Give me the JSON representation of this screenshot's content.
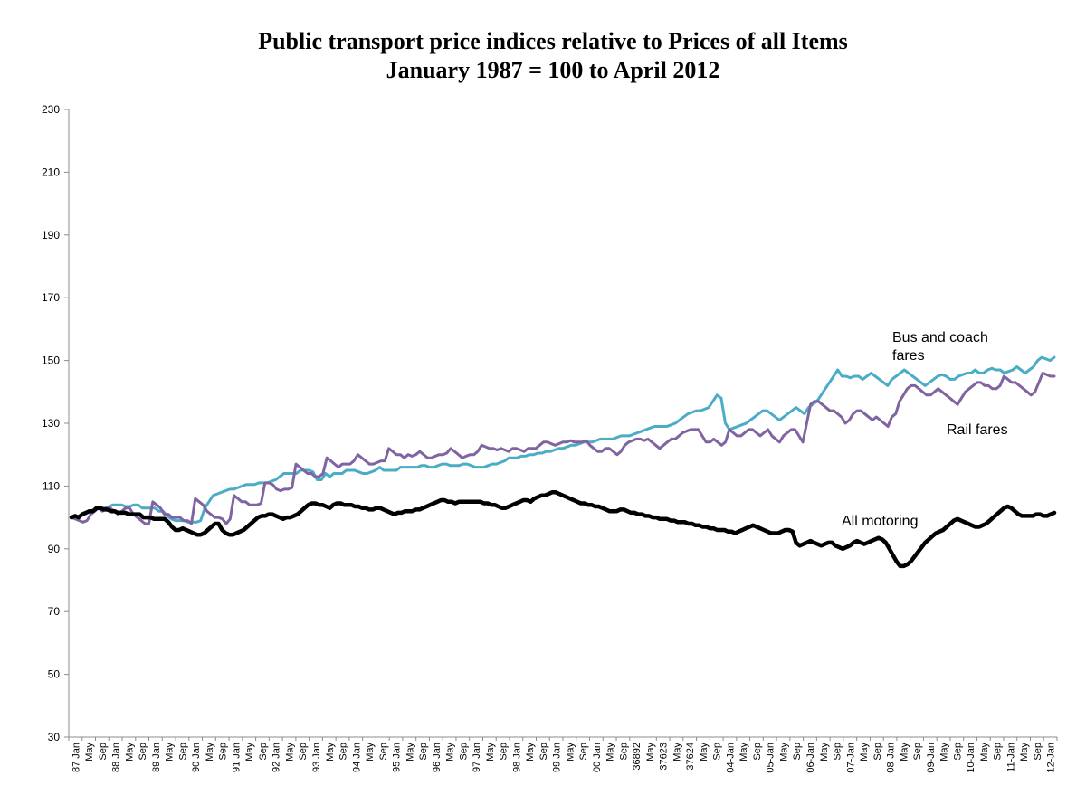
{
  "chart_data": {
    "type": "line",
    "title": "Public transport price indices relative to Prices of all Items",
    "subtitle": "January 1987 = 100 to April 2012",
    "xlabel": "",
    "ylabel": "",
    "ylim": [
      30,
      230
    ],
    "yticks": [
      30,
      50,
      70,
      90,
      110,
      130,
      150,
      170,
      190,
      210,
      230
    ],
    "grid": false,
    "legend": "none",
    "x_tick_labels": [
      "87 Jan",
      "May",
      "Sep",
      "88 Jan",
      "May",
      "Sep",
      "89 Jan",
      "May",
      "Sep",
      "90 Jan",
      "May",
      "Sep",
      "91 Jan",
      "May",
      "Sep",
      "92 Jan",
      "May",
      "Sep",
      "93 Jan",
      "May",
      "Sep",
      "94 Jan",
      "May",
      "Sep",
      "95 Jan",
      "May",
      "Sep",
      "96 Jan",
      "May",
      "Sep",
      "97 Jan",
      "May",
      "Sep",
      "98 Jan",
      "May",
      "Sep",
      "99 Jan",
      "May",
      "Sep",
      "00 Jan",
      "May",
      "Sep",
      "36892",
      "May",
      "37623",
      "May",
      "37624",
      "May",
      "Sep",
      "04-Jan",
      "May",
      "Sep",
      "05-Jan",
      "May",
      "Sep",
      "06-Jan",
      "May",
      "Sep",
      "07-Jan",
      "May",
      "Sep",
      "08-Jan",
      "May",
      "Sep",
      "09-Jan",
      "May",
      "Sep",
      "10-Jan",
      "May",
      "Sep",
      "11-Jan",
      "May",
      "Sep",
      "12-Jan"
    ],
    "series": [
      {
        "name": "Bus and coach fares",
        "color": "#4bacc6",
        "values": [
          100,
          99.5,
          100.5,
          101,
          101.5,
          102,
          102.5,
          103,
          103,
          103.5,
          104,
          104,
          104,
          103.5,
          103.5,
          104,
          104,
          103,
          103,
          103,
          103,
          102,
          102,
          100.5,
          99.5,
          99,
          99,
          99,
          98.5,
          98.5,
          98.5,
          99,
          103,
          105,
          107,
          107.5,
          108,
          108.5,
          109,
          109,
          109.5,
          110,
          110.5,
          110.5,
          110.5,
          111,
          111,
          111,
          111.5,
          112,
          113,
          114,
          114,
          114,
          114,
          115,
          115,
          115,
          114.5,
          112,
          112,
          114,
          113,
          114,
          114,
          114,
          115,
          115,
          115,
          114.5,
          114,
          114,
          114.5,
          115,
          116,
          115,
          115,
          115,
          115,
          116,
          116,
          116,
          116,
          116,
          116.5,
          116.5,
          116,
          116,
          116.5,
          117,
          117,
          116.5,
          116.5,
          116.5,
          117,
          117,
          116.5,
          116,
          116,
          116,
          116.5,
          117,
          117,
          117.5,
          118,
          119,
          119,
          119,
          119.5,
          119.5,
          120,
          120,
          120.5,
          120.5,
          121,
          121,
          121.5,
          122,
          122,
          122.5,
          123,
          123,
          123.5,
          124,
          124,
          124,
          124.5,
          125,
          125,
          125,
          125,
          125.5,
          126,
          126,
          126,
          126.5,
          127,
          127.5,
          128,
          128.5,
          129,
          129,
          129,
          129,
          129.5,
          130,
          131,
          132,
          133,
          133.5,
          134,
          134,
          134.5,
          135,
          137,
          139,
          138,
          130,
          128,
          128.5,
          129,
          129.5,
          130,
          131,
          132,
          133,
          134,
          134,
          133,
          132,
          131,
          132,
          133,
          134,
          135,
          134,
          133,
          135,
          136,
          137,
          139,
          141,
          143,
          145,
          147,
          145,
          145,
          144.5,
          145,
          145,
          144,
          145,
          146,
          145,
          144,
          143,
          142,
          144,
          145,
          146,
          147,
          146,
          145,
          144,
          143,
          142,
          143,
          144,
          145,
          145.5,
          145,
          144,
          144,
          145,
          145.5,
          146,
          146,
          147,
          146,
          146,
          147,
          147.5,
          147,
          147,
          146,
          146.5,
          147,
          148,
          147,
          146,
          147,
          148,
          150,
          151,
          150.5,
          150,
          151
        ]
      },
      {
        "name": "Rail fares",
        "color": "#8064a2",
        "values": [
          100,
          99.5,
          99,
          98.5,
          99,
          101,
          102,
          103,
          102,
          103,
          103,
          102,
          101,
          102,
          103,
          103,
          101,
          100,
          99,
          98,
          98,
          105,
          104,
          103,
          101,
          101,
          100,
          100,
          100,
          99,
          99,
          98,
          106,
          105,
          104,
          102,
          101,
          100,
          100,
          99.5,
          98,
          99.5,
          107,
          106,
          105,
          105,
          104,
          104,
          104,
          104.5,
          111,
          111,
          110.5,
          109,
          108.5,
          109,
          109,
          109.5,
          117,
          116,
          115,
          114,
          114,
          113,
          113,
          114,
          119,
          118,
          117,
          116,
          117,
          117,
          117,
          118,
          120,
          119,
          118,
          117,
          117,
          117.5,
          118,
          118,
          122,
          121,
          120,
          120,
          119,
          120,
          119.5,
          120,
          121,
          120,
          119,
          119,
          119.5,
          120,
          120,
          120.5,
          122,
          121,
          120,
          119,
          119.5,
          120,
          120,
          121,
          123,
          122.5,
          122,
          122,
          121.5,
          122,
          121.5,
          121,
          122,
          122,
          121.5,
          121,
          122,
          122,
          122,
          123,
          124,
          124,
          123.5,
          123,
          123.5,
          124,
          124,
          124.5,
          124,
          124,
          124,
          124.5,
          123,
          122,
          121,
          121,
          122,
          122,
          121,
          120,
          121,
          123,
          124,
          124.5,
          125,
          125,
          124.5,
          125,
          124,
          123,
          122,
          123,
          124,
          125,
          125,
          126,
          127,
          127.5,
          128,
          128,
          128,
          126,
          124,
          124,
          125,
          124,
          123,
          124,
          128,
          127,
          126,
          126,
          127,
          128,
          128,
          127,
          126,
          127,
          128,
          126,
          125,
          124,
          126,
          127,
          128,
          128,
          126,
          124,
          130,
          136,
          137,
          137,
          136,
          135,
          134,
          134,
          133,
          132,
          130,
          131,
          133,
          134,
          134,
          133,
          132,
          131,
          132,
          131,
          130,
          129,
          132,
          133,
          137,
          139,
          141,
          142,
          142,
          141,
          140,
          139,
          139,
          140,
          141,
          140,
          139,
          138,
          137,
          136,
          138,
          140,
          141,
          142,
          143,
          143,
          142,
          142,
          141,
          141,
          142,
          145,
          144,
          143,
          143,
          142,
          141,
          140,
          139,
          140,
          143,
          146,
          145.5,
          145,
          145
        ]
      },
      {
        "name": "All motoring",
        "color": "#000000",
        "values": [
          100,
          100.5,
          100,
          101,
          101.5,
          102,
          102,
          103,
          103,
          102.5,
          102.5,
          102,
          102,
          101.5,
          101.5,
          101.5,
          101,
          101,
          101,
          101,
          100,
          100,
          100,
          99.5,
          99.5,
          99.5,
          99.5,
          98.5,
          97,
          96,
          96,
          96.5,
          96,
          95.5,
          95,
          94.5,
          94.5,
          95,
          96,
          97,
          98,
          98,
          96,
          95,
          94.5,
          94.5,
          95,
          95.5,
          96,
          97,
          98,
          99,
          100,
          100.5,
          100.5,
          101,
          101,
          100.5,
          100,
          99.5,
          100,
          100,
          100.5,
          101,
          102,
          103,
          104,
          104.5,
          104.5,
          104,
          104,
          103.5,
          103,
          104,
          104.5,
          104.5,
          104,
          104,
          104,
          103.5,
          103.5,
          103,
          103,
          102.5,
          102.5,
          103,
          103,
          102.5,
          102,
          101.5,
          101,
          101.5,
          101.5,
          102,
          102,
          102,
          102.5,
          102.5,
          103,
          103.5,
          104,
          104.5,
          105,
          105.5,
          105.5,
          105,
          105,
          104.5,
          105,
          105,
          105,
          105,
          105,
          105,
          105,
          104.5,
          104.5,
          104,
          104,
          103.5,
          103,
          103,
          103.5,
          104,
          104.5,
          105,
          105.5,
          105.5,
          105,
          106,
          106.5,
          107,
          107,
          107.5,
          108,
          108,
          107.5,
          107,
          106.5,
          106,
          105.5,
          105,
          104.5,
          104.5,
          104,
          104,
          103.5,
          103.5,
          103,
          102.5,
          102,
          102,
          102,
          102.5,
          102.5,
          102,
          101.5,
          101.5,
          101,
          101,
          100.5,
          100.5,
          100,
          100,
          99.5,
          99.5,
          99.5,
          99,
          99,
          98.5,
          98.5,
          98.5,
          98,
          98,
          97.5,
          97.5,
          97,
          97,
          96.5,
          96.5,
          96,
          96,
          96,
          95.5,
          95.5,
          95,
          95.5,
          96,
          96.5,
          97,
          97.5,
          97,
          96.5,
          96,
          95.5,
          95,
          95,
          95,
          95.5,
          96,
          96,
          95.5,
          92,
          91,
          91.5,
          92,
          92.5,
          92,
          91.5,
          91,
          91.5,
          92,
          92,
          91,
          90.5,
          90,
          90.5,
          91,
          92,
          92.5,
          92,
          91.5,
          92,
          92.5,
          93,
          93.5,
          93,
          92,
          90,
          88,
          86,
          84.5,
          84.5,
          85,
          86,
          87.5,
          89,
          90.5,
          92,
          93,
          94,
          95,
          95.5,
          96,
          97,
          98,
          99,
          99.5,
          99,
          98.5,
          98,
          97.5,
          97,
          97,
          97.5,
          98,
          99,
          100,
          101,
          102,
          103,
          103.5,
          103,
          102,
          101,
          100.5,
          100.5,
          100.5,
          100.5,
          101,
          101,
          100.5,
          100.5,
          101,
          101.5
        ]
      }
    ],
    "annotations": [
      {
        "text": "Bus and coach",
        "series": "Bus and coach fares"
      },
      {
        "text": "fares",
        "series": "Bus and coach fares"
      },
      {
        "text": "Rail fares",
        "series": "Rail fares"
      },
      {
        "text": "All motoring",
        "series": "All motoring"
      }
    ]
  }
}
